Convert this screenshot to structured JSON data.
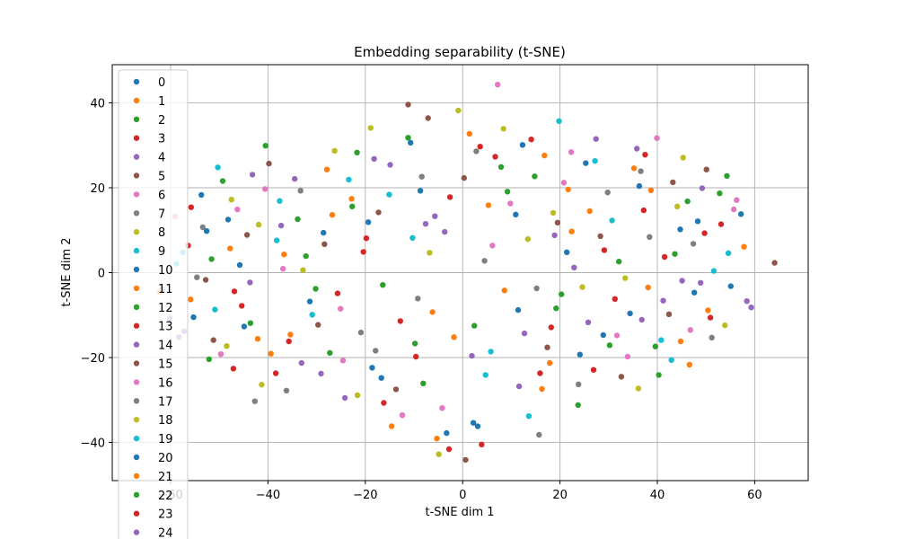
{
  "chart_data": {
    "type": "scatter",
    "title": "Embedding separability (t-SNE)",
    "xlabel": "t-SNE dim 1",
    "ylabel": "t-SNE dim 2",
    "xlim": [
      -72,
      71
    ],
    "ylim": [
      -49,
      49
    ],
    "xticks": [
      -60,
      -40,
      -20,
      0,
      20,
      40,
      60
    ],
    "yticks": [
      -40,
      -20,
      0,
      20,
      40
    ],
    "grid": true,
    "legend_position": "top-left",
    "palette": [
      "#1f77b4",
      "#ff7f0e",
      "#2ca02c",
      "#d62728",
      "#9467bd",
      "#8c564b",
      "#e377c2",
      "#7f7f7f",
      "#bcbd22",
      "#17becf"
    ],
    "series": [
      {
        "name": "0",
        "color": "#1f77b4",
        "points": [
          [
            -48.2,
            12.5
          ],
          [
            -31.4,
            -6.8
          ],
          [
            12.3,
            30.1
          ],
          [
            44.7,
            10.2
          ],
          [
            -18.6,
            -22.4
          ],
          [
            28.9,
            -14.7
          ],
          [
            3.1,
            -36.2
          ],
          [
            -55.3,
            -10.5
          ],
          [
            21.4,
            4.8
          ],
          [
            -8.7,
            19.3
          ]
        ]
      },
      {
        "name": "1",
        "color": "#ff7f0e",
        "points": [
          [
            -42.1,
            -15.6
          ],
          [
            -22.8,
            17.4
          ],
          [
            8.6,
            -4.2
          ],
          [
            35.2,
            24.6
          ],
          [
            50.4,
            -8.9
          ],
          [
            -5.3,
            -39.1
          ],
          [
            17.9,
            -21.3
          ],
          [
            -36.7,
            4.3
          ],
          [
            26.1,
            14.5
          ],
          [
            57.8,
            6.1
          ]
        ]
      },
      {
        "name": "2",
        "color": "#2ca02c",
        "points": [
          [
            -51.6,
            3.2
          ],
          [
            -27.3,
            -18.9
          ],
          [
            -11.2,
            31.8
          ],
          [
            14.8,
            22.7
          ],
          [
            39.6,
            -17.4
          ],
          [
            2.4,
            -12.5
          ],
          [
            -33.9,
            12.6
          ],
          [
            46.2,
            16.8
          ],
          [
            23.7,
            -31.2
          ],
          [
            -16.4,
            -2.9
          ]
        ]
      },
      {
        "name": "3",
        "color": "#d62728",
        "points": [
          [
            -46.9,
            -4.4
          ],
          [
            -19.8,
            8.1
          ],
          [
            6.7,
            27.3
          ],
          [
            31.3,
            -6.2
          ],
          [
            53.1,
            11.4
          ],
          [
            -2.8,
            -41.6
          ],
          [
            -38.4,
            -23.7
          ],
          [
            18.2,
            -12.9
          ],
          [
            41.5,
            3.7
          ],
          [
            -9.6,
            -19.8
          ]
        ]
      },
      {
        "name": "4",
        "color": "#9467bd",
        "points": [
          [
            -57.2,
            -13.8
          ],
          [
            -34.5,
            22.1
          ],
          [
            -3.7,
            9.6
          ],
          [
            27.4,
            31.5
          ],
          [
            48.9,
            -2.4
          ],
          [
            11.6,
            -26.8
          ],
          [
            -24.2,
            -29.5
          ],
          [
            36.8,
            -11.1
          ],
          [
            -14.9,
            25.4
          ],
          [
            59.3,
            -8.2
          ]
        ]
      },
      {
        "name": "5",
        "color": "#8c564b",
        "points": [
          [
            -44.3,
            8.9
          ],
          [
            -29.7,
            -12.3
          ],
          [
            -7.1,
            36.4
          ],
          [
            19.5,
            11.8
          ],
          [
            43.2,
            21.3
          ],
          [
            0.6,
            -44.1
          ],
          [
            -52.8,
            -1.7
          ],
          [
            32.6,
            -24.5
          ],
          [
            64.1,
            2.3
          ],
          [
            -17.3,
            14.2
          ]
        ]
      },
      {
        "name": "6",
        "color": "#e377c2",
        "points": [
          [
            -40.6,
            19.7
          ],
          [
            -25.1,
            -8.5
          ],
          [
            9.8,
            16.3
          ],
          [
            33.9,
            -19.8
          ],
          [
            55.7,
            14.9
          ],
          [
            -12.4,
            -33.6
          ],
          [
            22.3,
            28.4
          ],
          [
            -49.7,
            -19.2
          ],
          [
            7.2,
            44.3
          ],
          [
            46.8,
            -13.5
          ]
        ]
      },
      {
        "name": "7",
        "color": "#7f7f7f",
        "points": [
          [
            -53.4,
            10.7
          ],
          [
            -20.9,
            -14.1
          ],
          [
            4.5,
            2.8
          ],
          [
            29.8,
            18.9
          ],
          [
            51.2,
            -15.3
          ],
          [
            -36.2,
            -27.8
          ],
          [
            15.7,
            -38.2
          ],
          [
            -8.4,
            22.6
          ],
          [
            38.4,
            8.4
          ],
          [
            -61.7,
            -3.9
          ]
        ]
      },
      {
        "name": "8",
        "color": "#bcbd22",
        "points": [
          [
            -47.5,
            17.2
          ],
          [
            -32.8,
            0.6
          ],
          [
            -0.9,
            38.2
          ],
          [
            24.6,
            -3.4
          ],
          [
            45.3,
            27.1
          ],
          [
            -4.9,
            -42.8
          ],
          [
            -41.3,
            -26.4
          ],
          [
            13.4,
            7.9
          ],
          [
            36.1,
            -27.3
          ],
          [
            -18.9,
            34.1
          ]
        ]
      },
      {
        "name": "9",
        "color": "#17becf",
        "points": [
          [
            -50.9,
            -8.7
          ],
          [
            -23.4,
            21.9
          ],
          [
            5.8,
            -18.6
          ],
          [
            30.7,
            12.3
          ],
          [
            54.6,
            4.6
          ],
          [
            -10.3,
            8.2
          ],
          [
            -37.6,
            16.9
          ],
          [
            19.8,
            35.7
          ],
          [
            42.9,
            -20.6
          ],
          [
            -58.8,
            2.1
          ]
        ]
      },
      {
        "name": "10",
        "color": "#1f77b4",
        "points": [
          [
            -45.8,
            1.8
          ],
          [
            -16.7,
            -24.8
          ],
          [
            10.9,
            13.7
          ],
          [
            34.4,
            -9.6
          ],
          [
            57.2,
            13.8
          ],
          [
            -28.6,
            9.4
          ],
          [
            2.2,
            -35.4
          ],
          [
            25.3,
            25.8
          ],
          [
            -53.7,
            18.3
          ],
          [
            47.6,
            -4.7
          ]
        ]
      },
      {
        "name": "11",
        "color": "#ff7f0e",
        "points": [
          [
            -39.4,
            -19.1
          ],
          [
            -26.8,
            13.6
          ],
          [
            -6.2,
            -9.3
          ],
          [
            21.7,
            19.6
          ],
          [
            44.8,
            -16.2
          ],
          [
            1.4,
            32.7
          ],
          [
            -55.9,
            -6.3
          ],
          [
            16.3,
            -27.4
          ],
          [
            38.7,
            19.4
          ],
          [
            -14.6,
            -36.2
          ]
        ]
      },
      {
        "name": "12",
        "color": "#2ca02c",
        "points": [
          [
            -49.3,
            21.6
          ],
          [
            -30.2,
            -3.8
          ],
          [
            7.9,
            24.9
          ],
          [
            32.1,
            2.6
          ],
          [
            52.8,
            18.7
          ],
          [
            -9.8,
            -16.7
          ],
          [
            -43.6,
            -11.9
          ],
          [
            19.2,
            -8.4
          ],
          [
            40.3,
            -24.1
          ],
          [
            -21.7,
            28.3
          ]
        ]
      },
      {
        "name": "13",
        "color": "#d62728",
        "points": [
          [
            -56.4,
            6.4
          ],
          [
            -35.7,
            -16.2
          ],
          [
            -2.6,
            17.8
          ],
          [
            26.9,
            -22.9
          ],
          [
            49.7,
            9.3
          ],
          [
            3.9,
            -40.5
          ],
          [
            -20.4,
            4.9
          ],
          [
            14.1,
            31.4
          ],
          [
            37.2,
            14.7
          ],
          [
            -47.1,
            -22.6
          ]
        ]
      },
      {
        "name": "14",
        "color": "#9467bd",
        "points": [
          [
            -43.7,
            -2.3
          ],
          [
            -18.2,
            26.8
          ],
          [
            12.7,
            -14.3
          ],
          [
            35.8,
            29.2
          ],
          [
            58.4,
            -6.7
          ],
          [
            -7.6,
            11.5
          ],
          [
            -33.1,
            -21.3
          ],
          [
            22.9,
            1.2
          ],
          [
            45.1,
            -1.9
          ],
          [
            -60.2,
            -10.8
          ]
        ]
      },
      {
        "name": "15",
        "color": "#8c564b",
        "points": [
          [
            -51.2,
            -15.9
          ],
          [
            -28.4,
            6.7
          ],
          [
            0.3,
            22.3
          ],
          [
            28.3,
            8.6
          ],
          [
            50.1,
            24.3
          ],
          [
            -13.7,
            -27.5
          ],
          [
            -39.8,
            25.7
          ],
          [
            17.4,
            -17.6
          ],
          [
            42.4,
            -9.8
          ],
          [
            -11.2,
            39.6
          ]
        ]
      },
      {
        "name": "16",
        "color": "#e377c2",
        "points": [
          [
            -46.3,
            14.9
          ],
          [
            -24.6,
            -20.7
          ],
          [
            6.1,
            6.4
          ],
          [
            31.7,
            -14.8
          ],
          [
            56.3,
            17.1
          ],
          [
            -4.2,
            -31.9
          ],
          [
            -36.9,
            0.9
          ],
          [
            20.8,
            21.2
          ],
          [
            39.9,
            31.7
          ],
          [
            -59.1,
            13.2
          ]
        ]
      },
      {
        "name": "17",
        "color": "#7f7f7f",
        "points": [
          [
            -54.6,
            -1.1
          ],
          [
            -33.3,
            19.3
          ],
          [
            -9.2,
            -6.1
          ],
          [
            23.8,
            -26.3
          ],
          [
            47.4,
            6.8
          ],
          [
            2.8,
            28.6
          ],
          [
            -17.9,
            -18.4
          ],
          [
            15.2,
            -3.7
          ],
          [
            36.6,
            23.9
          ],
          [
            -42.7,
            -30.3
          ]
        ]
      },
      {
        "name": "18",
        "color": "#bcbd22",
        "points": [
          [
            -41.9,
            11.3
          ],
          [
            -21.6,
            -28.9
          ],
          [
            8.4,
            33.9
          ],
          [
            33.4,
            -1.3
          ],
          [
            53.9,
            -12.4
          ],
          [
            -6.8,
            4.7
          ],
          [
            -48.5,
            -17.3
          ],
          [
            18.6,
            14.1
          ],
          [
            44.1,
            15.6
          ],
          [
            -26.3,
            28.7
          ]
        ]
      },
      {
        "name": "19",
        "color": "#17becf",
        "points": [
          [
            -50.3,
            24.8
          ],
          [
            -30.9,
            -9.9
          ],
          [
            4.7,
            -24.1
          ],
          [
            27.2,
            26.3
          ],
          [
            51.6,
            0.4
          ],
          [
            -15.1,
            18.4
          ],
          [
            -38.2,
            7.6
          ],
          [
            13.6,
            -33.8
          ],
          [
            40.8,
            -15.9
          ],
          [
            -57.5,
            4.8
          ]
        ]
      },
      {
        "name": "20",
        "color": "#1f77b4",
        "points": [
          [
            -44.9,
            -12.7
          ],
          [
            -19.4,
            11.9
          ],
          [
            11.4,
            -8.8
          ],
          [
            36.3,
            20.4
          ],
          [
            55.1,
            -3.2
          ],
          [
            -3.3,
            -37.8
          ],
          [
            -52.6,
            9.8
          ],
          [
            24.1,
            -19.3
          ],
          [
            48.3,
            12.1
          ],
          [
            -10.7,
            30.6
          ]
        ]
      },
      {
        "name": "21",
        "color": "#ff7f0e",
        "points": [
          [
            -47.8,
            5.7
          ],
          [
            -27.9,
            24.3
          ],
          [
            -1.8,
            -15.2
          ],
          [
            22.4,
            9.7
          ],
          [
            46.6,
            -21.7
          ],
          [
            5.3,
            15.9
          ],
          [
            -35.4,
            -14.6
          ],
          [
            16.8,
            27.6
          ],
          [
            38.1,
            -3.5
          ],
          [
            -62.3,
            -4.6
          ]
        ]
      },
      {
        "name": "22",
        "color": "#2ca02c",
        "points": [
          [
            -52.1,
            -20.4
          ],
          [
            -32.2,
            3.9
          ],
          [
            9.2,
            19.1
          ],
          [
            30.2,
            -17.1
          ],
          [
            54.3,
            22.8
          ],
          [
            -8.1,
            -26.1
          ],
          [
            -22.7,
            15.6
          ],
          [
            20.3,
            -5.1
          ],
          [
            43.6,
            4.4
          ],
          [
            -40.5,
            29.9
          ]
        ]
      },
      {
        "name": "23",
        "color": "#d62728",
        "points": [
          [
            -55.8,
            15.4
          ],
          [
            -25.7,
            -4.9
          ],
          [
            3.6,
            29.7
          ],
          [
            29.1,
            5.3
          ],
          [
            50.9,
            -10.6
          ],
          [
            -12.8,
            -11.4
          ],
          [
            -45.4,
            -7.8
          ],
          [
            15.9,
            -23.7
          ],
          [
            37.5,
            27.8
          ],
          [
            -16.2,
            -30.7
          ]
        ]
      },
      {
        "name": "24",
        "color": "#9467bd",
        "points": [
          [
            -43.2,
            23.1
          ],
          [
            -29.1,
            -23.8
          ],
          [
            -5.7,
            13.3
          ],
          [
            25.8,
            -11.7
          ],
          [
            49.2,
            19.9
          ],
          [
            1.9,
            -19.6
          ],
          [
            -37.3,
            11.1
          ],
          [
            18.9,
            8.8
          ],
          [
            41.2,
            -6.6
          ],
          [
            -58.3,
            -15.2
          ]
        ]
      }
    ]
  }
}
